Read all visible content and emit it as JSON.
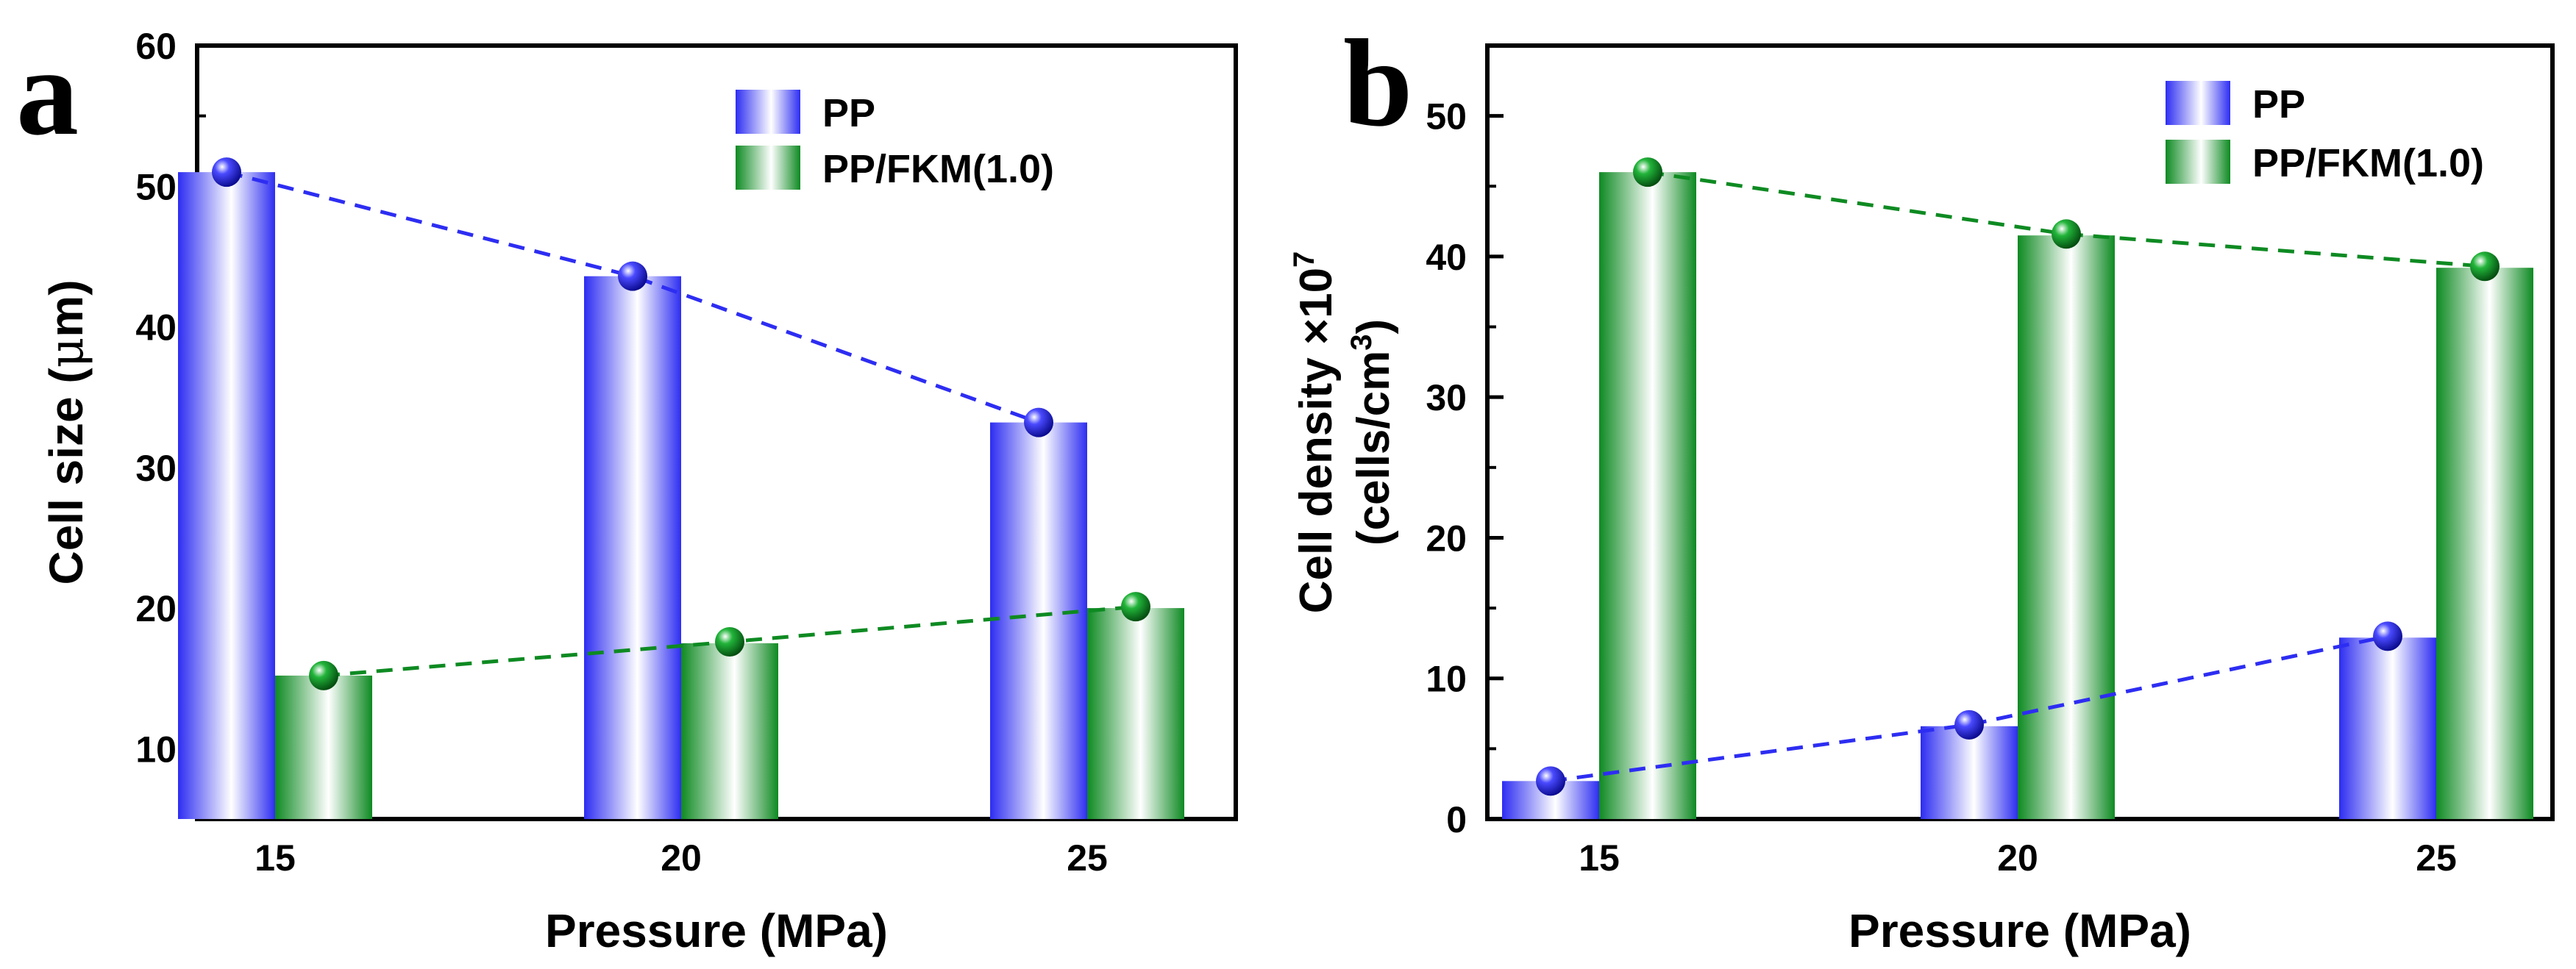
{
  "chart_data": [
    {
      "panel_label": "a",
      "type": "bar",
      "categories": [
        "15",
        "20",
        "25"
      ],
      "xlabel": "Pressure (MPa)",
      "ylabel_main": "Cell size (",
      "ylabel_mu": "μ",
      "ylabel_unit_end": "m)",
      "ylim": [
        5,
        60
      ],
      "yticks": [
        10,
        20,
        30,
        40,
        50,
        60
      ],
      "series": [
        {
          "name": "PP",
          "values": [
            51.0,
            43.6,
            33.2
          ],
          "trend_values": [
            51.0,
            43.6,
            33.2
          ]
        },
        {
          "name": "PP/FKM(1.0)",
          "values": [
            15.2,
            17.5,
            20.0
          ],
          "trend_values": [
            15.2,
            17.6,
            20.1
          ]
        }
      ],
      "legend": "top-right"
    },
    {
      "panel_label": "b",
      "type": "bar",
      "categories": [
        "15",
        "20",
        "25"
      ],
      "xlabel": "Pressure (MPa)",
      "ylabel_line1_main": "Cell density ×10",
      "ylabel_line1_sup": "7",
      "ylabel_line2_main": "(cells/cm",
      "ylabel_line2_sup": "3",
      "ylabel_line2_end": ")",
      "ylim": [
        0,
        55
      ],
      "yticks": [
        0,
        10,
        20,
        30,
        40,
        50
      ],
      "series": [
        {
          "name": "PP",
          "values": [
            2.7,
            6.6,
            12.9
          ],
          "trend_values": [
            2.7,
            6.7,
            13.0
          ]
        },
        {
          "name": "PP/FKM(1.0)",
          "values": [
            46.0,
            41.5,
            39.2
          ],
          "trend_values": [
            46.0,
            41.6,
            39.3
          ]
        }
      ],
      "legend": "top-right"
    }
  ],
  "colors": {
    "pp": "#2d2df2",
    "pp_dark": "#1111a8",
    "fkm": "#0e8a22",
    "fkm_dark": "#065012"
  }
}
